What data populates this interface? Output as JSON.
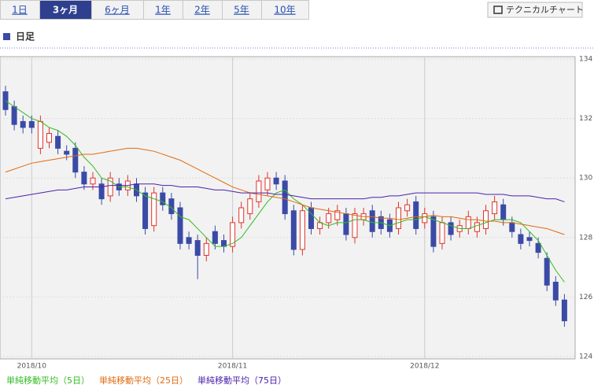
{
  "tabs": [
    "1日",
    "3ヶ月",
    "6ヶ月",
    "1年",
    "2年",
    "5年",
    "10年"
  ],
  "button": "テクニカルチャート",
  "heading": "日足",
  "chart_data": {
    "type": "candlestick",
    "categories": [
      null,
      null,
      null,
      "2018/10",
      null,
      null,
      null,
      null,
      null,
      null,
      null,
      null,
      null,
      null,
      null,
      null,
      null,
      null,
      null,
      null,
      null,
      null,
      null,
      null,
      null,
      null,
      "2018/11",
      null,
      null,
      null,
      null,
      null,
      null,
      null,
      null,
      null,
      null,
      null,
      null,
      null,
      null,
      null,
      null,
      null,
      null,
      null,
      null,
      null,
      "2018/12",
      null,
      null,
      null,
      null,
      null,
      null,
      null,
      null,
      null,
      null,
      null,
      null,
      null,
      null,
      null,
      null
    ],
    "open": [
      132.9,
      132.4,
      131.9,
      131.9,
      131.0,
      131.2,
      131.4,
      130.9,
      131.0,
      130.2,
      129.8,
      129.8,
      129.4,
      129.8,
      129.6,
      129.8,
      129.5,
      128.4,
      129.5,
      129.3,
      129.0,
      128.0,
      127.9,
      127.4,
      128.2,
      127.9,
      127.7,
      128.5,
      128.8,
      129.2,
      129.6,
      130.0,
      129.9,
      128.9,
      127.6,
      129.0,
      128.3,
      128.5,
      128.6,
      128.8,
      128.0,
      128.6,
      128.9,
      128.7,
      128.6,
      128.3,
      128.9,
      129.2,
      128.5,
      128.7,
      127.8,
      128.5,
      128.2,
      128.3,
      128.2,
      128.3,
      128.8,
      129.1,
      128.5,
      128.1,
      128.0,
      127.8,
      127.3,
      126.5,
      125.9
    ],
    "high": [
      133.1,
      132.6,
      132.1,
      132.1,
      132.1,
      131.7,
      131.6,
      131.1,
      131.2,
      130.4,
      130.2,
      130.0,
      130.2,
      130.0,
      130.1,
      130.0,
      129.7,
      129.7,
      129.7,
      129.5,
      129.2,
      128.2,
      128.1,
      128.0,
      128.4,
      128.1,
      128.7,
      129.2,
      129.5,
      130.1,
      130.2,
      130.2,
      130.1,
      129.1,
      129.1,
      129.2,
      128.7,
      129.0,
      129.1,
      129.0,
      129.0,
      129.0,
      129.1,
      128.9,
      128.8,
      129.2,
      129.3,
      129.4,
      129.0,
      128.9,
      128.7,
      128.7,
      128.6,
      128.9,
      128.7,
      129.1,
      129.4,
      129.3,
      128.7,
      128.3,
      128.2,
      128.0,
      127.5,
      126.7,
      126.1
    ],
    "low": [
      132.1,
      131.6,
      131.5,
      131.5,
      130.8,
      131.0,
      130.8,
      130.6,
      130.0,
      129.6,
      129.6,
      129.1,
      129.2,
      129.4,
      129.4,
      129.2,
      128.1,
      128.2,
      128.9,
      128.6,
      127.6,
      127.6,
      126.6,
      127.2,
      127.6,
      127.5,
      127.5,
      128.3,
      128.6,
      129.0,
      129.4,
      129.6,
      128.6,
      127.4,
      127.4,
      128.1,
      128.1,
      128.3,
      128.4,
      127.9,
      127.8,
      128.4,
      128.0,
      128.1,
      128.0,
      128.1,
      128.7,
      128.1,
      128.3,
      127.5,
      127.6,
      127.9,
      128.0,
      128.1,
      128.0,
      128.1,
      128.6,
      128.4,
      128.0,
      127.6,
      127.7,
      127.3,
      126.2,
      125.7,
      125.0
    ],
    "close": [
      132.3,
      131.8,
      131.7,
      131.7,
      131.9,
      131.5,
      131.0,
      130.8,
      130.2,
      129.8,
      130.0,
      129.3,
      130.0,
      129.6,
      129.9,
      129.4,
      128.3,
      129.5,
      129.1,
      128.8,
      127.8,
      127.8,
      127.4,
      127.8,
      127.8,
      127.7,
      128.5,
      129.0,
      129.3,
      129.9,
      130.0,
      129.8,
      128.8,
      127.6,
      128.9,
      128.3,
      128.5,
      128.8,
      128.9,
      128.1,
      128.8,
      128.8,
      128.2,
      128.3,
      128.2,
      129.0,
      129.1,
      128.3,
      128.8,
      127.7,
      128.5,
      128.1,
      128.4,
      128.7,
      128.5,
      128.9,
      129.2,
      128.6,
      128.2,
      127.8,
      127.9,
      127.5,
      126.4,
      125.9,
      125.2
    ],
    "up_color": "#e0342c",
    "down_color": "#3b4aa6",
    "series": [
      {
        "name": "単純移動平均（5日）",
        "color": "#33bb22",
        "values": [
          132.6,
          132.4,
          132.2,
          132.0,
          131.9,
          131.7,
          131.6,
          131.4,
          131.1,
          130.7,
          130.4,
          130.0,
          129.9,
          129.7,
          129.7,
          129.6,
          129.4,
          129.3,
          129.2,
          129.0,
          128.7,
          128.6,
          128.3,
          128.0,
          127.7,
          127.7,
          127.8,
          128.0,
          128.4,
          128.8,
          129.2,
          129.5,
          129.6,
          129.3,
          129.1,
          128.8,
          128.5,
          128.4,
          128.5,
          128.5,
          128.6,
          128.6,
          128.5,
          128.5,
          128.4,
          128.5,
          128.6,
          128.6,
          128.7,
          128.6,
          128.5,
          128.4,
          128.3,
          128.3,
          128.4,
          128.5,
          128.6,
          128.6,
          128.6,
          128.5,
          128.2,
          127.9,
          127.4,
          126.9,
          126.5
        ]
      },
      {
        "name": "単純移動平均（25日）",
        "color": "#e06a10",
        "values": [
          130.2,
          130.3,
          130.4,
          130.5,
          130.55,
          130.6,
          130.65,
          130.7,
          130.75,
          130.8,
          130.8,
          130.85,
          130.9,
          130.95,
          131.0,
          131.0,
          130.95,
          130.9,
          130.8,
          130.7,
          130.6,
          130.45,
          130.3,
          130.15,
          130.0,
          129.85,
          129.7,
          129.6,
          129.5,
          129.45,
          129.4,
          129.35,
          129.3,
          129.2,
          129.1,
          129.0,
          128.95,
          128.9,
          128.85,
          128.8,
          128.75,
          128.7,
          128.7,
          128.65,
          128.65,
          128.6,
          128.65,
          128.7,
          128.7,
          128.75,
          128.7,
          128.7,
          128.65,
          128.6,
          128.6,
          128.55,
          128.55,
          128.5,
          128.5,
          128.45,
          128.4,
          128.35,
          128.3,
          128.2,
          128.1
        ]
      },
      {
        "name": "単純移動平均（75日）",
        "color": "#4a22aa",
        "values": [
          129.3,
          129.35,
          129.4,
          129.45,
          129.5,
          129.55,
          129.6,
          129.6,
          129.65,
          129.7,
          129.7,
          129.7,
          129.75,
          129.75,
          129.75,
          129.8,
          129.8,
          129.8,
          129.75,
          129.75,
          129.7,
          129.7,
          129.7,
          129.65,
          129.6,
          129.6,
          129.55,
          129.5,
          129.5,
          129.5,
          129.5,
          129.45,
          129.45,
          129.4,
          129.35,
          129.3,
          129.3,
          129.3,
          129.3,
          129.3,
          129.3,
          129.3,
          129.35,
          129.35,
          129.4,
          129.4,
          129.45,
          129.5,
          129.5,
          129.5,
          129.5,
          129.5,
          129.5,
          129.5,
          129.5,
          129.45,
          129.45,
          129.45,
          129.4,
          129.4,
          129.4,
          129.35,
          129.3,
          129.3,
          129.2
        ]
      }
    ],
    "ylim": [
      124,
      134
    ],
    "yticks": [
      124,
      126,
      128,
      130,
      132,
      134
    ],
    "grid": true
  }
}
